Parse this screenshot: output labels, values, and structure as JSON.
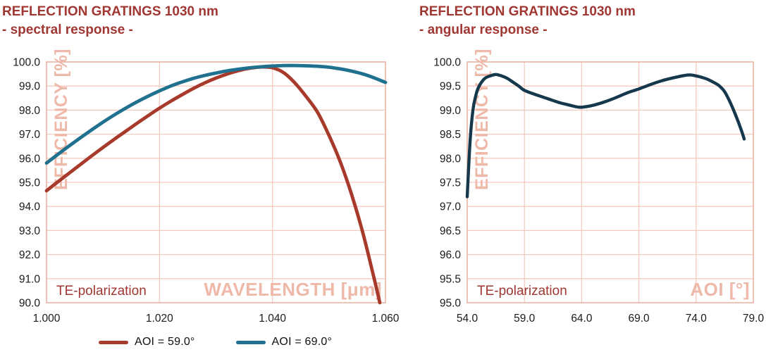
{
  "colors": {
    "title": "#A03733",
    "grid": "#F4CBBF",
    "plot_border": "#EBB4A5",
    "watermark": "#EFB9AA",
    "tick_label": "#1B1B1B",
    "annotation": "#A03733",
    "legend_text": "#111111",
    "series_red": "#A83A2B",
    "series_teal": "#20718F",
    "series_dark": "#16384C"
  },
  "legend": {
    "items": [
      {
        "label": "AOI = 59.0°",
        "color": "#A83A2B"
      },
      {
        "label": "AOI = 69.0°",
        "color": "#20718F"
      }
    ]
  },
  "chart_data": [
    {
      "type": "line",
      "title": "REFLECTION GRATINGS 1030 nm",
      "subtitle": "- spectral response -",
      "xlabel": "WAVELENGTH [μm]",
      "ylabel": "EFFICIENCY [%]",
      "annotation": "TE-polarization",
      "xlim": [
        1.0,
        1.06
      ],
      "ylim": [
        90.0,
        100.0
      ],
      "y_tick_step": 1.0,
      "y_tick_labels": [
        "100.0",
        "99.0",
        "98.0",
        "97.0",
        "96.0",
        "95.0",
        "94.0",
        "93.0",
        "92.0",
        "91.0",
        "90.0"
      ],
      "x_ticks": [
        {
          "value": 1.0,
          "label": "1.000"
        },
        {
          "value": 1.02,
          "label": "1.020"
        },
        {
          "value": 1.04,
          "label": "1.040"
        },
        {
          "value": 1.06,
          "label": "1.060"
        }
      ],
      "grid": true,
      "legend_position": "bottom",
      "series": [
        {
          "name": "AOI = 59.0°",
          "color": "#A83A2B",
          "x": [
            1.0,
            1.002,
            1.004,
            1.006,
            1.008,
            1.01,
            1.012,
            1.014,
            1.016,
            1.018,
            1.02,
            1.022,
            1.024,
            1.026,
            1.028,
            1.03,
            1.032,
            1.034,
            1.036,
            1.038,
            1.04,
            1.042,
            1.044,
            1.046,
            1.048,
            1.05,
            1.052,
            1.054,
            1.056,
            1.058,
            1.059
          ],
          "y": [
            94.65,
            95.02,
            95.38,
            95.74,
            96.1,
            96.45,
            96.79,
            97.12,
            97.45,
            97.77,
            98.08,
            98.37,
            98.64,
            98.9,
            99.13,
            99.33,
            99.5,
            99.64,
            99.74,
            99.79,
            99.76,
            99.55,
            99.12,
            98.55,
            97.9,
            96.95,
            95.85,
            94.5,
            92.9,
            91.0,
            90.0
          ]
        },
        {
          "name": "AOI = 69.0°",
          "color": "#20718F",
          "x": [
            1.0,
            1.002,
            1.004,
            1.006,
            1.008,
            1.01,
            1.012,
            1.014,
            1.016,
            1.018,
            1.02,
            1.022,
            1.024,
            1.026,
            1.028,
            1.03,
            1.032,
            1.034,
            1.036,
            1.038,
            1.04,
            1.042,
            1.044,
            1.046,
            1.048,
            1.05,
            1.052,
            1.054,
            1.056,
            1.058,
            1.06
          ],
          "y": [
            95.8,
            96.16,
            96.51,
            96.85,
            97.18,
            97.5,
            97.8,
            98.08,
            98.34,
            98.58,
            98.8,
            99.0,
            99.17,
            99.32,
            99.44,
            99.54,
            99.63,
            99.7,
            99.76,
            99.8,
            99.83,
            99.85,
            99.85,
            99.84,
            99.82,
            99.78,
            99.71,
            99.62,
            99.5,
            99.34,
            99.15
          ]
        }
      ]
    },
    {
      "type": "line",
      "title": "REFLECTION GRATINGS 1030 nm",
      "subtitle": "- angular response -",
      "xlabel": "AOI [°]",
      "ylabel": "EFFICIENCY [%]",
      "annotation": "TE-polarization",
      "xlim": [
        54.0,
        79.0
      ],
      "ylim": [
        95.0,
        100.0
      ],
      "y_tick_step": 0.5,
      "y_tick_labels": [
        "100.0",
        "99.5",
        "99.0",
        "98.5",
        "98.0",
        "97.5",
        "97.0",
        "96.5",
        "96.0",
        "95.5",
        "95.0"
      ],
      "x_ticks": [
        {
          "value": 54.0,
          "label": "54.0"
        },
        {
          "value": 59.0,
          "label": "59.0"
        },
        {
          "value": 64.0,
          "label": "64.0"
        },
        {
          "value": 69.0,
          "label": "69.0"
        },
        {
          "value": 74.0,
          "label": "74.0"
        },
        {
          "value": 79.0,
          "label": "79.0"
        }
      ],
      "grid": true,
      "legend_position": "none",
      "series": [
        {
          "name": "",
          "color": "#16384C",
          "x": [
            54.0,
            54.25,
            54.5,
            54.75,
            55.0,
            55.5,
            56.0,
            56.5,
            57.0,
            57.5,
            58.0,
            58.5,
            59.0,
            60.0,
            61.0,
            62.0,
            63.0,
            63.5,
            64.0,
            65.0,
            66.0,
            67.0,
            68.0,
            69.0,
            70.0,
            71.0,
            72.0,
            73.0,
            73.5,
            74.0,
            74.5,
            75.0,
            75.5,
            76.0,
            76.5,
            77.0,
            77.5,
            78.0,
            78.2
          ],
          "y": [
            97.2,
            98.35,
            99.0,
            99.3,
            99.48,
            99.65,
            99.71,
            99.74,
            99.71,
            99.66,
            99.58,
            99.5,
            99.41,
            99.32,
            99.24,
            99.16,
            99.1,
            99.07,
            99.06,
            99.1,
            99.17,
            99.26,
            99.36,
            99.44,
            99.53,
            99.61,
            99.67,
            99.72,
            99.73,
            99.71,
            99.68,
            99.64,
            99.58,
            99.51,
            99.38,
            99.15,
            98.87,
            98.55,
            98.4
          ]
        }
      ]
    }
  ]
}
